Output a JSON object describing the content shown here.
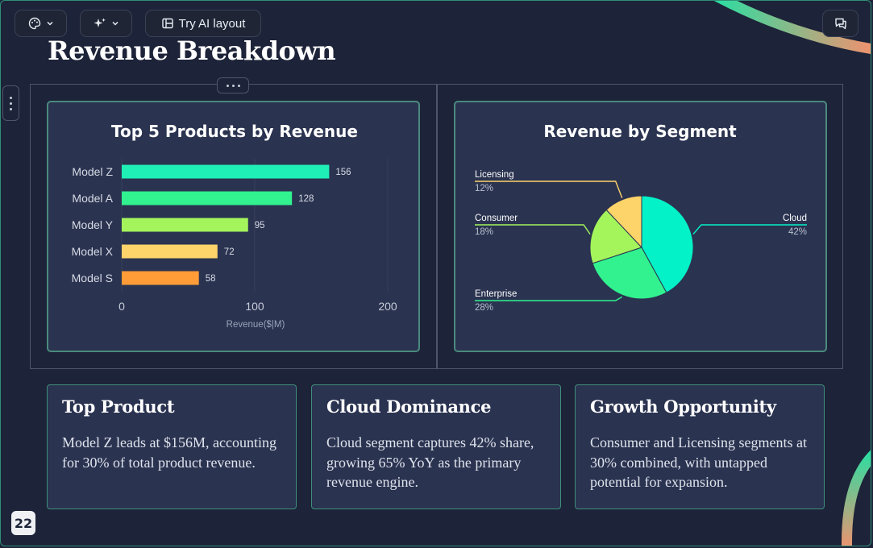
{
  "toolbar": {
    "theme_button_icon": "palette-icon",
    "ai_button_icon": "sparkle-icon",
    "try_ai_layout_label": "Try AI layout",
    "comment_button_icon": "chat-icon"
  },
  "slide": {
    "title": "Revenue Breakdown",
    "page_number": "22"
  },
  "colors": {
    "background": "#1d2338",
    "card": "#2a3350",
    "card_border": "#4a8a7e",
    "accent_gradient": [
      "#24e0a4",
      "#ff8c6b"
    ]
  },
  "chart_data": [
    {
      "type": "bar",
      "orientation": "horizontal",
      "title": "Top 5 Products by Revenue",
      "categories": [
        "Model Z",
        "Model A",
        "Model Y",
        "Model X",
        "Model S"
      ],
      "values": [
        156,
        128,
        95,
        72,
        58
      ],
      "colors": [
        "#1ff0b6",
        "#31f28f",
        "#a4f55c",
        "#fdd46a",
        "#ff9c38"
      ],
      "xlabel": "Revenue($|M)",
      "ylabel": "",
      "xlim": [
        0,
        200
      ],
      "xticks": [
        "0",
        "100",
        "200"
      ],
      "grid": true
    },
    {
      "type": "pie",
      "title": "Revenue by Segment",
      "slices": [
        {
          "label": "Cloud",
          "value": 42,
          "display": "42%",
          "color": "#04f2c8"
        },
        {
          "label": "Enterprise",
          "value": 28,
          "display": "28%",
          "color": "#31f28f"
        },
        {
          "label": "Consumer",
          "value": 18,
          "display": "18%",
          "color": "#a4f55c"
        },
        {
          "label": "Licensing",
          "value": 12,
          "display": "12%",
          "color": "#fdd46a"
        }
      ]
    }
  ],
  "insights": [
    {
      "title": "Top Product",
      "body": "Model Z leads at $156M, accounting for 30% of total product revenue."
    },
    {
      "title": "Cloud Dominance",
      "body": "Cloud segment captures 42% share, growing 65% YoY as the primary revenue engine."
    },
    {
      "title": "Growth Opportunity",
      "body": "Consumer and Licensing segments at 30% combined, with untapped potential for expansion."
    }
  ]
}
